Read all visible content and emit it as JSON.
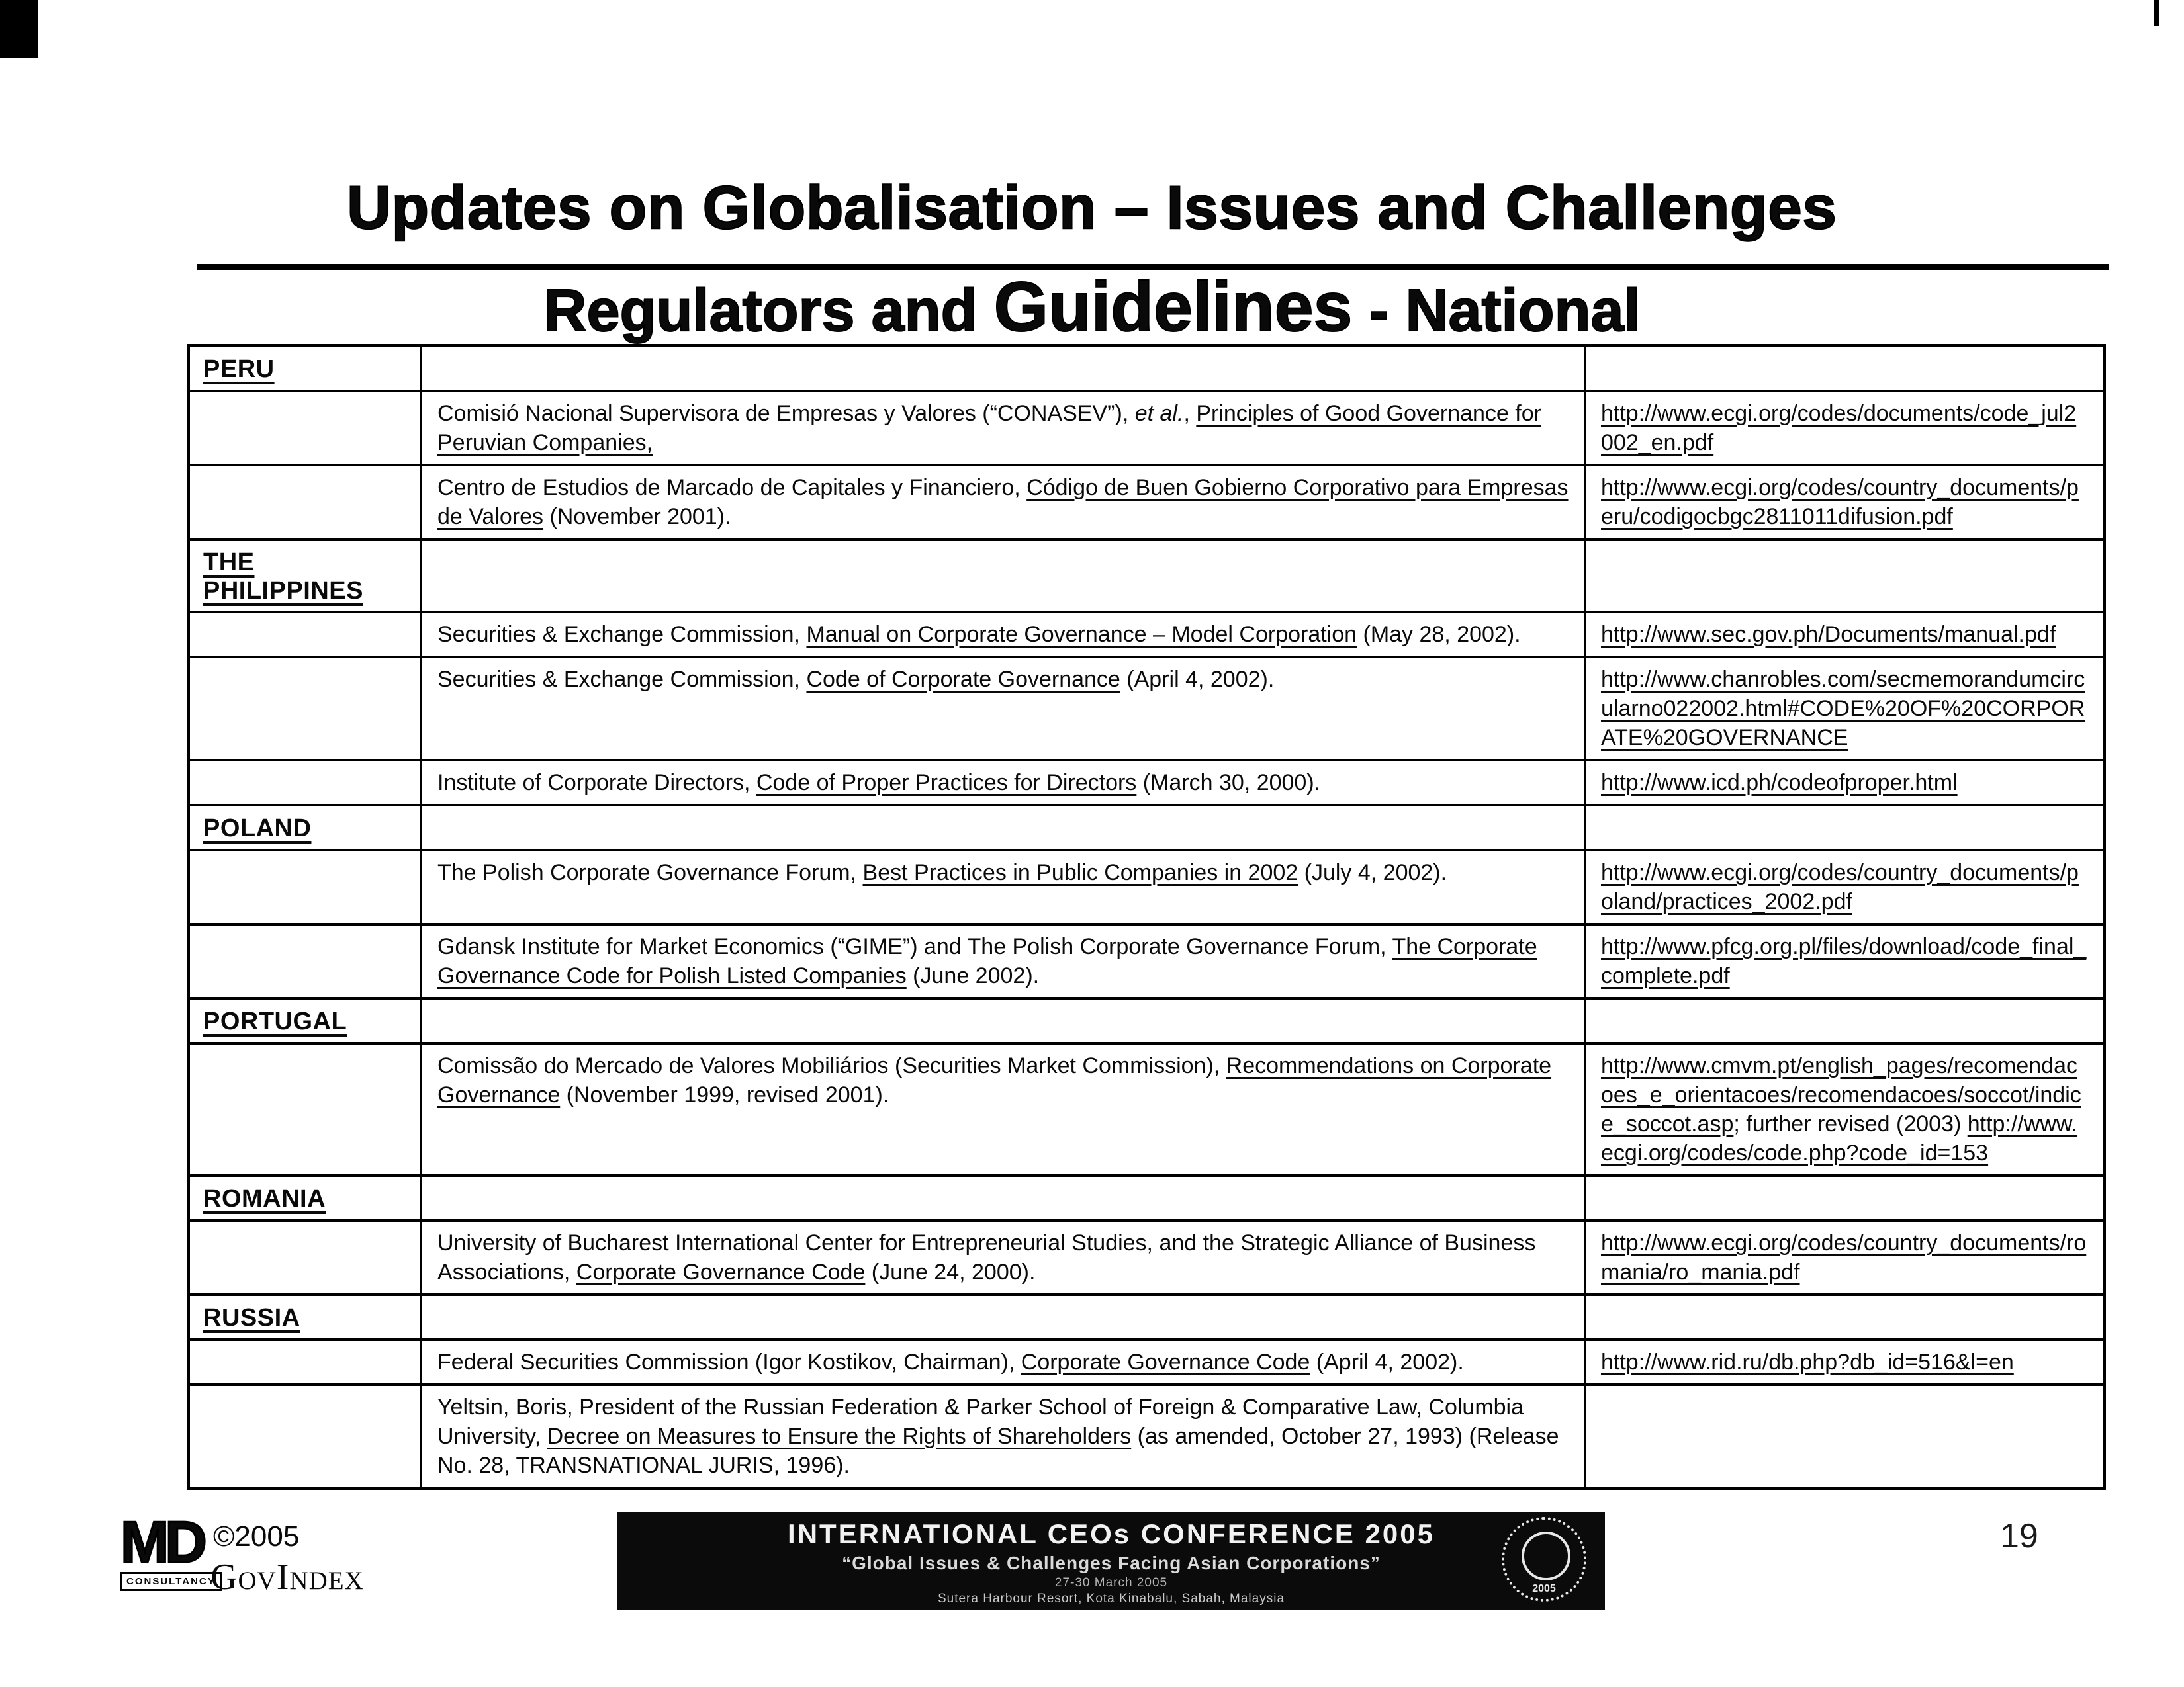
{
  "page": {
    "title": "Updates on Globalisation – Issues and Challenges",
    "subtitle": {
      "part1": "Regulators and ",
      "part2": "Guidelines",
      "part3": " - National"
    },
    "page_number": "19"
  },
  "table": {
    "rows": [
      {
        "type": "country",
        "label": "PERU"
      },
      {
        "type": "entry",
        "desc": [
          {
            "t": "Comisió Nacional Supervisora de Empresas y Valores (“CONASEV”), "
          },
          {
            "t": "et al.",
            "i": true
          },
          {
            "t": ", "
          },
          {
            "t": "Principles of Good Governance for Peruvian Companies,",
            "u": true
          }
        ],
        "url": [
          {
            "t": "http://www.ecgi.org/codes/documents/code_jul2002_en.pdf",
            "u": true,
            "link": true
          }
        ]
      },
      {
        "type": "entry",
        "desc": [
          {
            "t": "Centro de Estudios de Marcado de Capitales y Financiero, "
          },
          {
            "t": "Código de Buen Gobierno Corporativo para Empresas de Valores",
            "u": true
          },
          {
            "t": " (November 2001)."
          }
        ],
        "url": [
          {
            "t": "http://www.ecgi.org/codes/country_documents/peru/codigocbgc2811011difusion.pdf",
            "u": true,
            "link": true
          }
        ]
      },
      {
        "type": "country",
        "label": "THE PHILIPPINES"
      },
      {
        "type": "entry",
        "desc": [
          {
            "t": "Securities & Exchange Commission, "
          },
          {
            "t": "Manual on Corporate Governance – Model Corporation",
            "u": true
          },
          {
            "t": " (May 28, 2002)."
          }
        ],
        "url": [
          {
            "t": "http://www.sec.gov.ph/Documents/manual.pdf",
            "u": true,
            "link": true
          }
        ]
      },
      {
        "type": "entry",
        "desc": [
          {
            "t": "Securities & Exchange Commission, "
          },
          {
            "t": "Code of Corporate Governance",
            "u": true
          },
          {
            "t": " (April 4, 2002)."
          }
        ],
        "url": [
          {
            "t": "http://www.chanrobles.com/secmemorandumcircularno022002.html#CODE%20OF%20CORPORATE%20GOVERNANCE",
            "u": true,
            "link": true
          }
        ]
      },
      {
        "type": "entry",
        "desc": [
          {
            "t": "Institute of Corporate Directors, "
          },
          {
            "t": "Code of Proper Practices for Directors",
            "u": true
          },
          {
            "t": " (March 30, 2000)."
          }
        ],
        "url": [
          {
            "t": "http://www.icd.ph/codeofproper.html",
            "u": true,
            "link": true
          }
        ]
      },
      {
        "type": "country",
        "label": "POLAND"
      },
      {
        "type": "entry",
        "desc": [
          {
            "t": "The Polish Corporate Governance Forum, "
          },
          {
            "t": "Best Practices in Public Companies in 2002",
            "u": true
          },
          {
            "t": " (July 4, 2002)."
          }
        ],
        "url": [
          {
            "t": "http://www.ecgi.org/codes/country_documents/poland/practices_2002.pdf",
            "u": true,
            "link": true
          }
        ]
      },
      {
        "type": "entry",
        "desc": [
          {
            "t": "Gdansk Institute for Market Economics (“GIME”) and The Polish Corporate Governance Forum, "
          },
          {
            "t": "The Corporate Governance Code for Polish Listed Companies",
            "u": true
          },
          {
            "t": " (June 2002)."
          }
        ],
        "url": [
          {
            "t": "http://www.pfcg.org.pl/files/download/code_final_complete.pdf",
            "u": true,
            "link": true
          }
        ]
      },
      {
        "type": "country",
        "label": "PORTUGAL"
      },
      {
        "type": "entry",
        "desc": [
          {
            "t": "Comissão do Mercado de Valores Mobiliários (Securities Market Commission), "
          },
          {
            "t": "Recommendations on Corporate Governance",
            "u": true
          },
          {
            "t": " (November 1999, revised 2001)."
          }
        ],
        "url": [
          {
            "t": "http://www.cmvm.pt/english_pages/recomendacoes_e_orientacoes/recomendacoes/soccot/indice_soccot.asp",
            "u": true,
            "link": true
          },
          {
            "t": "; further revised (2003) "
          },
          {
            "t": "http://www.ecgi.org/codes/code.php?code_id=153",
            "u": true,
            "link": true
          }
        ]
      },
      {
        "type": "country",
        "label": "ROMANIA"
      },
      {
        "type": "entry",
        "desc": [
          {
            "t": "University of Bucharest International Center for Entrepreneurial Studies, and the Strategic Alliance of Business Associations, "
          },
          {
            "t": "Corporate Governance Code",
            "u": true
          },
          {
            "t": " (June 24, 2000)."
          }
        ],
        "url": [
          {
            "t": "http://www.ecgi.org/codes/country_documents/romania/ro_mania.pdf",
            "u": true,
            "link": true
          }
        ]
      },
      {
        "type": "country",
        "label": "RUSSIA"
      },
      {
        "type": "entry",
        "desc": [
          {
            "t": "Federal Securities Commission (Igor Kostikov, Chairman), "
          },
          {
            "t": "Corporate Governance Code",
            "u": true
          },
          {
            "t": " (April 4, 2002)."
          }
        ],
        "url": [
          {
            "t": "http://www.rid.ru/db.php?db_id=516&l=en",
            "u": true,
            "link": true
          }
        ]
      },
      {
        "type": "entry",
        "desc": [
          {
            "t": "Yeltsin, Boris, President of the Russian Federation & Parker School of  Foreign & Comparative Law, Columbia University, "
          },
          {
            "t": "Decree on Measures to Ensure the Rights of Shareholders",
            "u": true
          },
          {
            "t": " (as amended, October 27, 1993) (Release No. 28, TRANSNATIONAL JURIS, 1996)."
          }
        ],
        "url": []
      }
    ]
  },
  "footer": {
    "logo": {
      "initials": "MD",
      "sub": "CONSULTANCY"
    },
    "copyright": "©2005",
    "brand": "GovIndex",
    "banner": {
      "title": "INTERNATIONAL CEOs CONFERENCE 2005",
      "quote": "“Global Issues & Challenges Facing Asian Corporations”",
      "dates": "27-30 March 2005",
      "venue": "Sutera Harbour Resort, Kota Kinabalu, Sabah, Malaysia",
      "seal_year": "2005"
    }
  }
}
